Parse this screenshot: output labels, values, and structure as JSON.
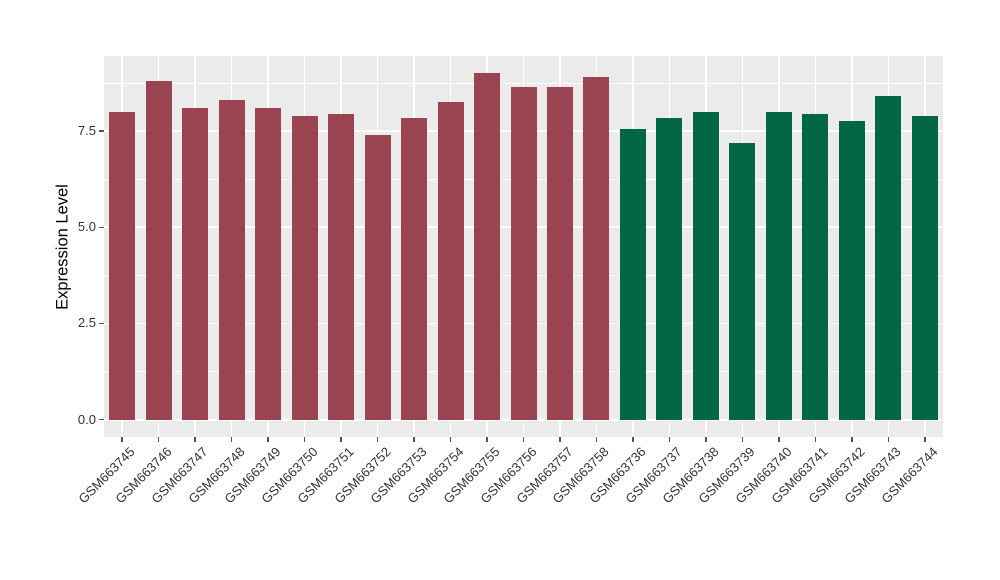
{
  "chart_data": {
    "type": "bar",
    "ylabel": "Expression Level",
    "ylim": [
      0,
      9.45
    ],
    "ytick_labels": [
      "0.0",
      "2.5",
      "5.0",
      "7.5"
    ],
    "ytick_values": [
      0,
      2.5,
      5.0,
      7.5
    ],
    "minor_grid_values": [
      1.25,
      3.75,
      6.25,
      8.75
    ],
    "grid": "on",
    "legend_position": "none",
    "x_label_angle": 45,
    "panel_background": "#EBEBEB",
    "gridline_color": "#FFFFFF",
    "groups": [
      {
        "name": "maroon",
        "color": "#9B4451"
      },
      {
        "name": "green",
        "color": "#036647"
      }
    ],
    "bars": [
      {
        "label": "GSM663745",
        "value": 8.0,
        "group": 0
      },
      {
        "label": "GSM663746",
        "value": 8.8,
        "group": 0
      },
      {
        "label": "GSM663747",
        "value": 8.1,
        "group": 0
      },
      {
        "label": "GSM663748",
        "value": 8.3,
        "group": 0
      },
      {
        "label": "GSM663749",
        "value": 8.1,
        "group": 0
      },
      {
        "label": "GSM663750",
        "value": 7.9,
        "group": 0
      },
      {
        "label": "GSM663751",
        "value": 7.95,
        "group": 0
      },
      {
        "label": "GSM663752",
        "value": 7.4,
        "group": 0
      },
      {
        "label": "GSM663753",
        "value": 7.85,
        "group": 0
      },
      {
        "label": "GSM663754",
        "value": 8.25,
        "group": 0
      },
      {
        "label": "GSM663755",
        "value": 9.0,
        "group": 0
      },
      {
        "label": "GSM663756",
        "value": 8.65,
        "group": 0
      },
      {
        "label": "GSM663757",
        "value": 8.65,
        "group": 0
      },
      {
        "label": "GSM663758",
        "value": 8.9,
        "group": 0
      },
      {
        "label": "GSM663736",
        "value": 7.55,
        "group": 1
      },
      {
        "label": "GSM663737",
        "value": 7.85,
        "group": 1
      },
      {
        "label": "GSM663738",
        "value": 8.0,
        "group": 1
      },
      {
        "label": "GSM663739",
        "value": 7.2,
        "group": 1
      },
      {
        "label": "GSM663740",
        "value": 8.0,
        "group": 1
      },
      {
        "label": "GSM663741",
        "value": 7.95,
        "group": 1
      },
      {
        "label": "GSM663742",
        "value": 7.75,
        "group": 1
      },
      {
        "label": "GSM663743",
        "value": 8.4,
        "group": 1
      },
      {
        "label": "GSM663744",
        "value": 7.9,
        "group": 1
      }
    ]
  }
}
